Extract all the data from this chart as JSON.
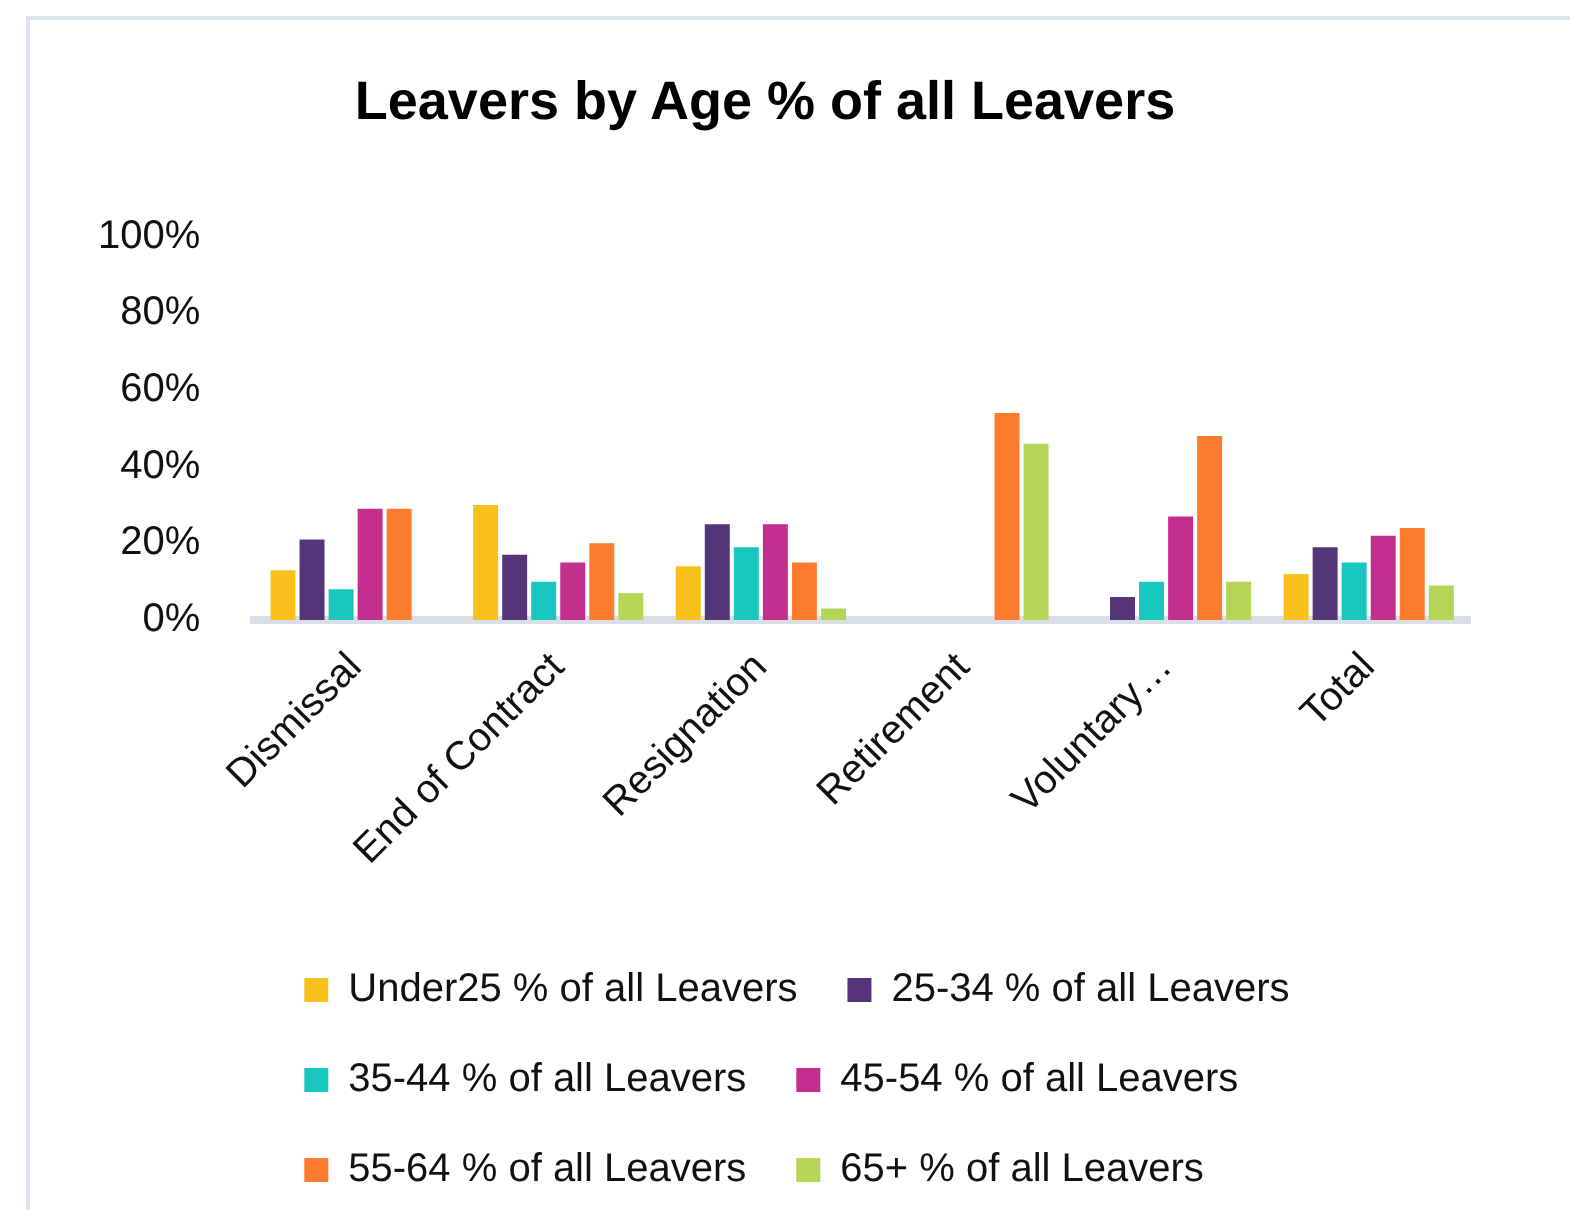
{
  "chart_data": {
    "type": "bar",
    "title": "Leavers by Age % of all Leavers",
    "categories": [
      "Dismissal",
      "End of Contract",
      "Resignation",
      "Retirement",
      "Voluntary…",
      "Total"
    ],
    "series": [
      {
        "name": "Under25 % of all Leavers",
        "color": "#f8c01b",
        "values": [
          13,
          30,
          14,
          0,
          0,
          12
        ]
      },
      {
        "name": "25-34 % of all Leavers",
        "color": "#55357a",
        "values": [
          21,
          17,
          25,
          0,
          6,
          19
        ]
      },
      {
        "name": "35-44 % of all Leavers",
        "color": "#1ac6c0",
        "values": [
          8,
          10,
          19,
          0,
          10,
          15
        ]
      },
      {
        "name": "45-54 % of all Leavers",
        "color": "#c22f8e",
        "values": [
          29,
          15,
          25,
          0,
          27,
          22
        ]
      },
      {
        "name": "55-64 % of all Leavers",
        "color": "#fd7b2c",
        "values": [
          29,
          20,
          15,
          54,
          48,
          24
        ]
      },
      {
        "name": "65+ % of all Leavers",
        "color": "#b4d555",
        "values": [
          0,
          7,
          3,
          46,
          10,
          9
        ]
      }
    ],
    "ylim": [
      0,
      100
    ],
    "yticks": [
      {
        "value": 0,
        "label": "0%"
      },
      {
        "value": 20,
        "label": "20%"
      },
      {
        "value": 40,
        "label": "40%"
      },
      {
        "value": 60,
        "label": "60%"
      },
      {
        "value": 80,
        "label": "80%"
      },
      {
        "value": 100,
        "label": "100%"
      }
    ],
    "legend": "bottom"
  }
}
